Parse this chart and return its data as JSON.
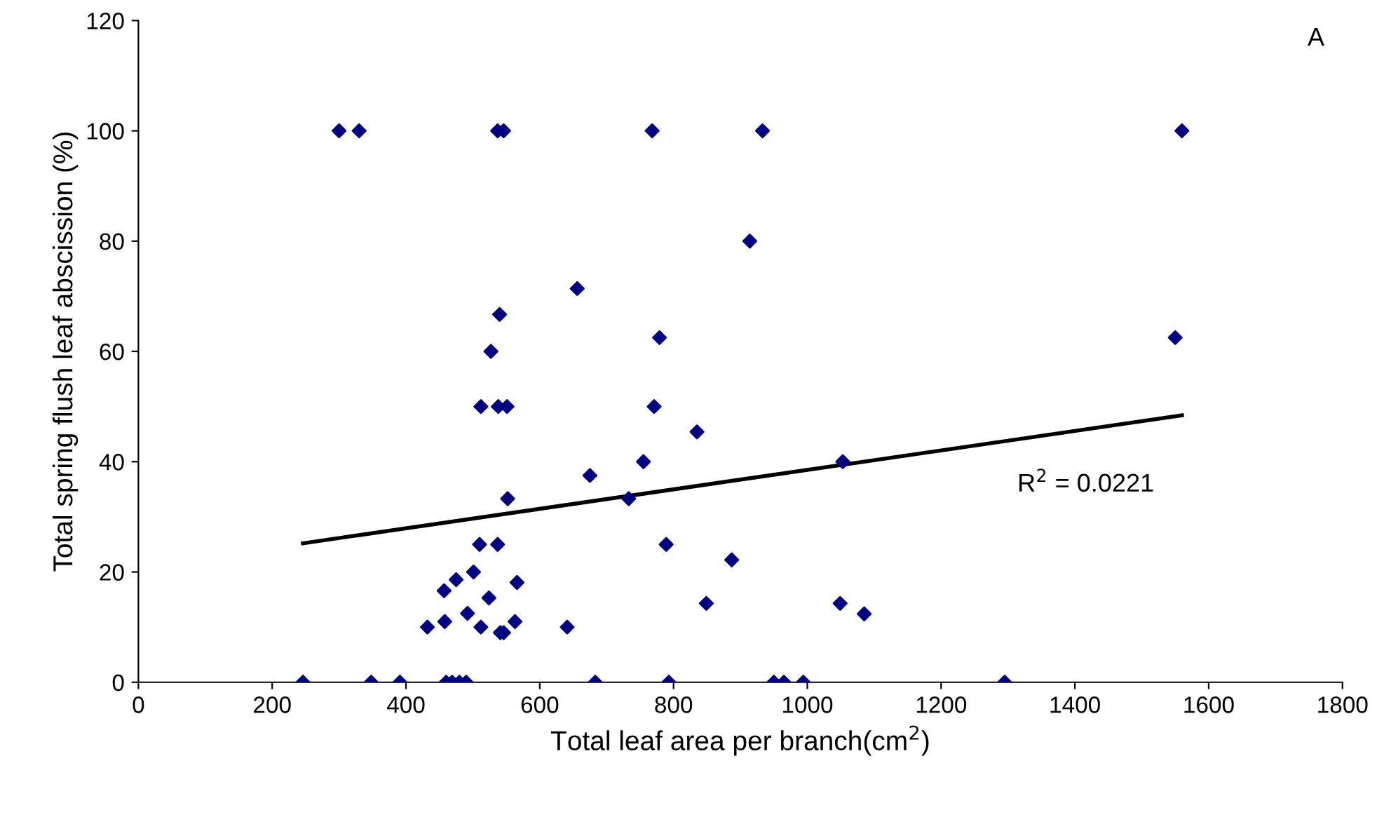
{
  "chart_data": {
    "type": "scatter",
    "xlabel": "Total leaf area per branch(cm$^{2}$)",
    "ylabel": "Total spring flush leaf abscission (%)",
    "annotations": [
      "A",
      "R$^{2}$ = 0.0221"
    ],
    "xlim": [
      0,
      1800
    ],
    "xticks": [
      0,
      200,
      400,
      600,
      800,
      1000,
      1200,
      1400,
      1600,
      1800
    ],
    "ylim": [
      0,
      120
    ],
    "yticks": [
      0,
      20,
      40,
      60,
      80,
      100,
      120
    ],
    "grid": false,
    "legend": false,
    "series": [
      {
        "color": "#000080",
        "marker": "diamond",
        "x": [
          300,
          330,
          537,
          546,
          768,
          933,
          1560,
          914,
          656,
          540,
          1550,
          779,
          771,
          835,
          755,
          733,
          675,
          1053,
          789,
          887,
          849,
          1049,
          1085,
          683,
          793,
          950,
          965,
          994,
          1295,
          552,
          510,
          537,
          501,
          475,
          457,
          566,
          524,
          492,
          432,
          458,
          512,
          541,
          546,
          563,
          641,
          246,
          348,
          391,
          460,
          469,
          480,
          490,
          512,
          538,
          551,
          527
        ],
        "values": [
          100,
          100,
          100,
          100,
          100,
          100,
          100,
          80,
          71.4,
          66.7,
          62.5,
          62.5,
          50,
          45.4,
          40,
          33.3,
          37.5,
          40,
          25,
          22.2,
          14.3,
          14.3,
          12.4,
          0,
          0,
          0,
          0,
          0,
          0,
          33.3,
          25,
          25,
          20,
          18.6,
          16.6,
          18.1,
          15.3,
          12.5,
          10,
          11,
          10,
          9,
          9,
          11,
          10,
          0,
          0,
          0,
          0,
          0,
          0,
          0,
          50,
          50,
          50,
          60
        ]
      },
      {
        "type": "line",
        "color": "#000000",
        "marker": "none",
        "line_style": "solid",
        "x": [
          246,
          1560
        ],
        "values": [
          25.2,
          48.4
        ]
      }
    ]
  }
}
